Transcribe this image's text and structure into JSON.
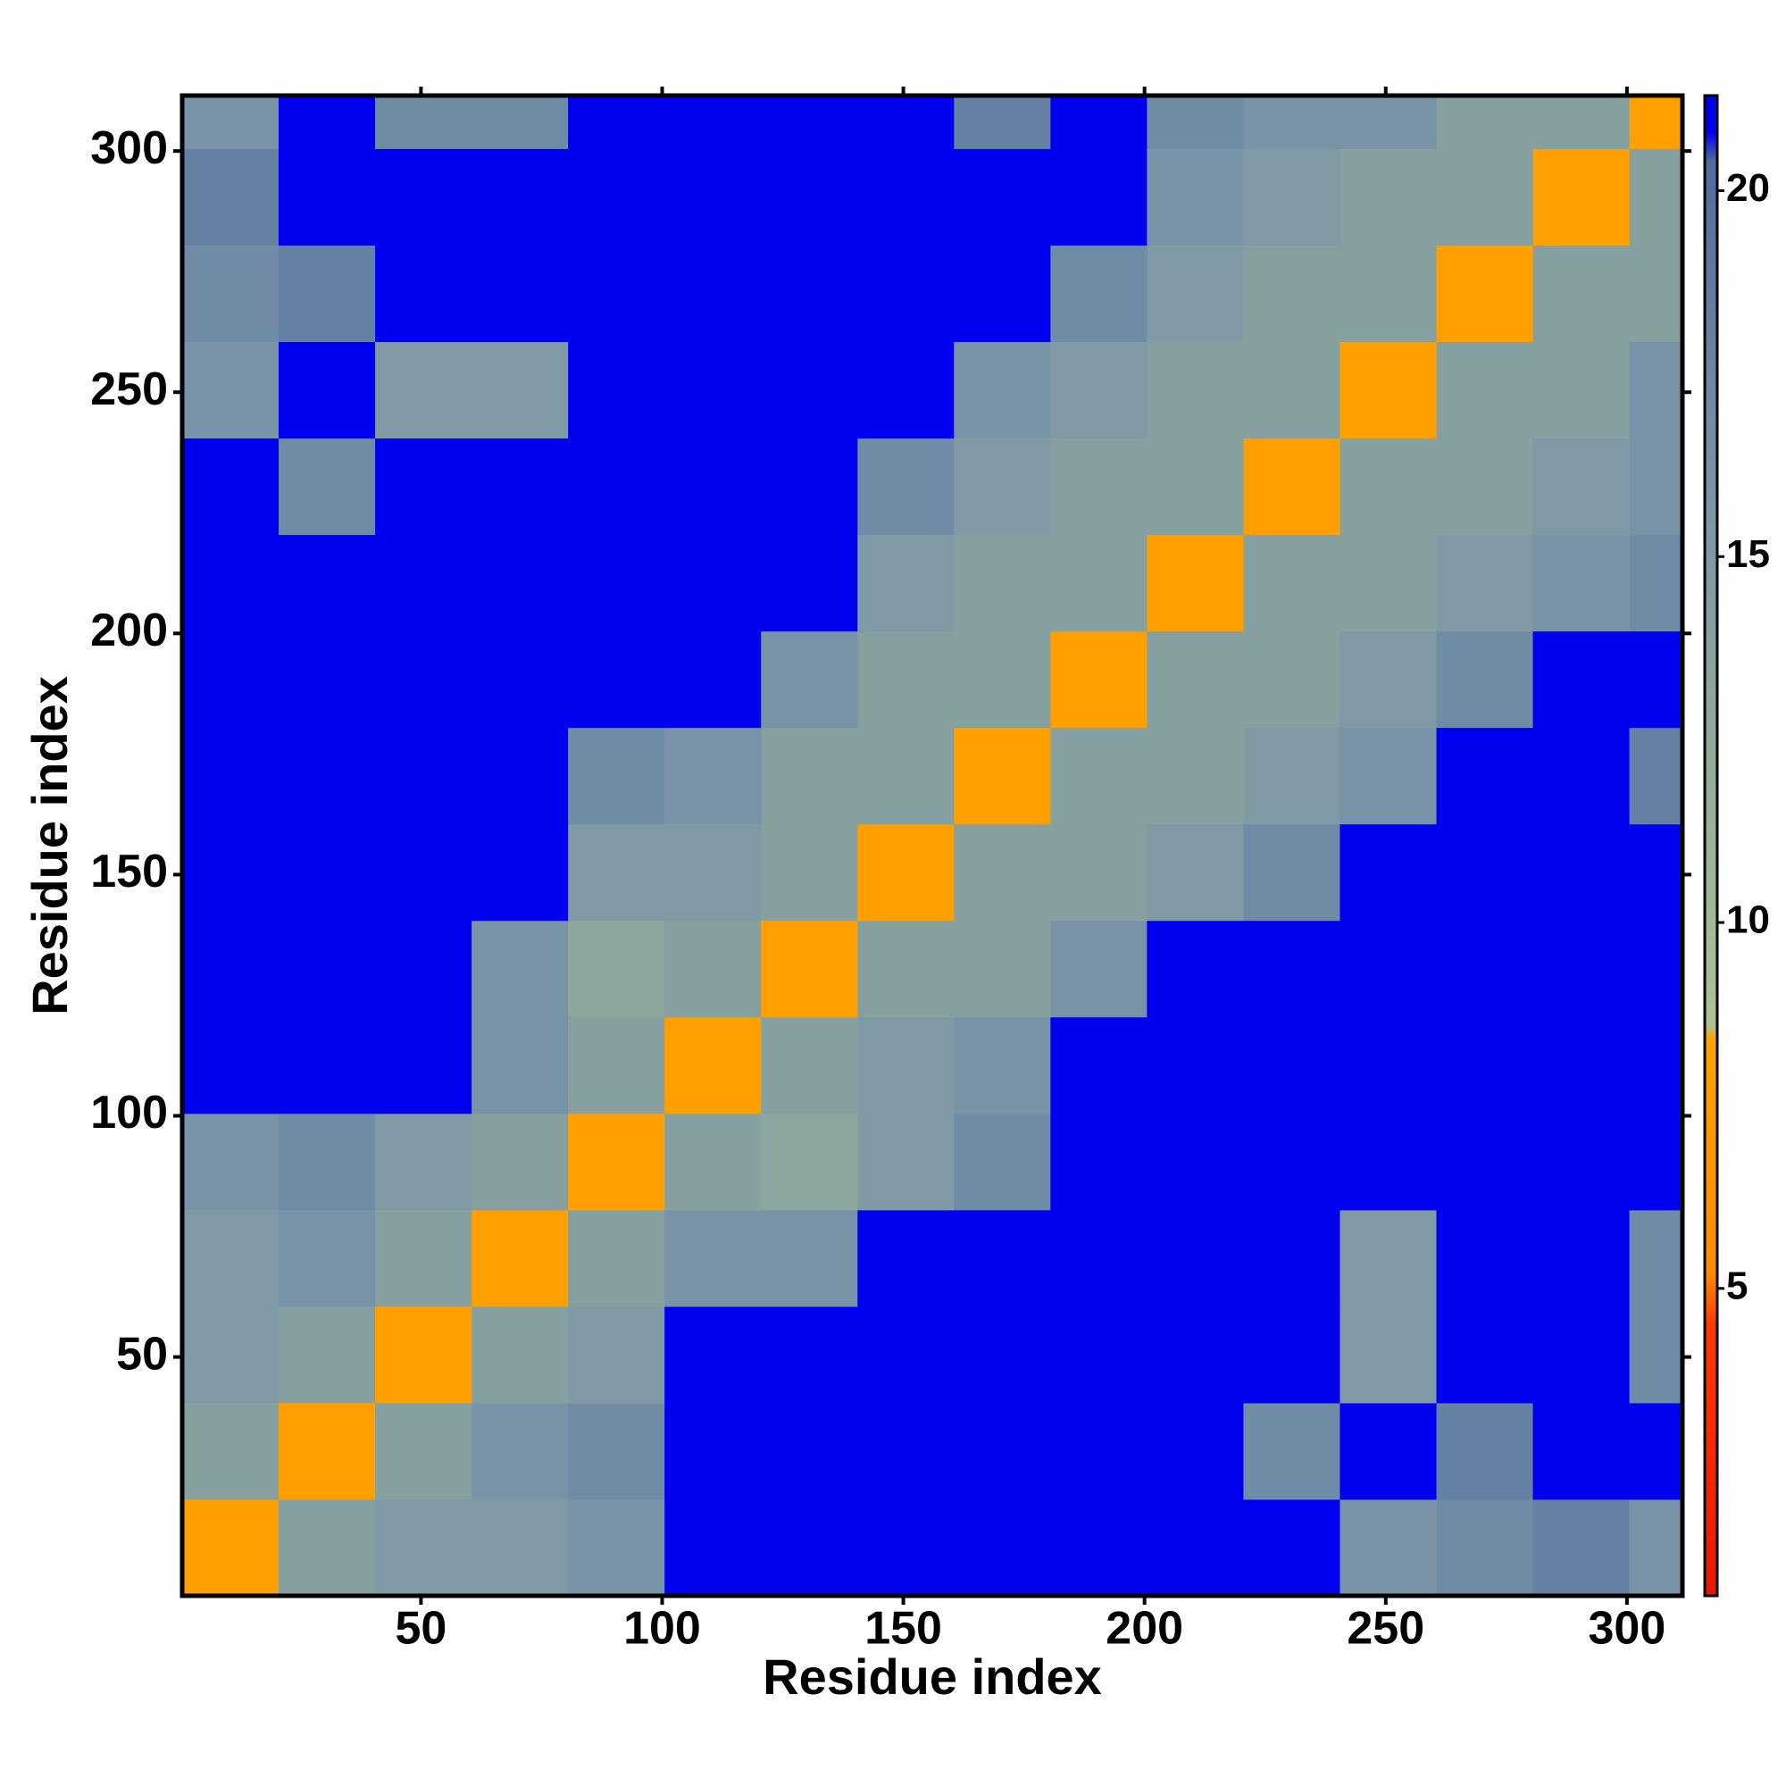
{
  "chart_data": {
    "type": "heatmap",
    "xlabel": "Residue index",
    "ylabel": "Residue index",
    "xbins": [
      0.5,
      20.5,
      40.5,
      60.5,
      80.5,
      100.5,
      120.5,
      140.5,
      160.5,
      180.5,
      200.5,
      220.5,
      240.5,
      260.5,
      280.5,
      300.5,
      311.5
    ],
    "ybins": [
      0.5,
      20.5,
      40.5,
      60.5,
      80.5,
      100.5,
      120.5,
      140.5,
      160.5,
      180.5,
      200.5,
      220.5,
      240.5,
      260.5,
      280.5,
      300.5,
      311.5
    ],
    "xlim": [
      0.5,
      311.5
    ],
    "ylim": [
      0.5,
      311.5
    ],
    "xticks": [
      50,
      100,
      150,
      200,
      250,
      300
    ],
    "yticks": [
      50,
      100,
      150,
      200,
      250,
      300
    ],
    "zlim": [
      0.8,
      21.3
    ],
    "zticks": [
      5,
      10,
      15,
      20
    ],
    "colorscale": [
      [
        0.8,
        "#e41a00"
      ],
      [
        4.5,
        "#ff3a00"
      ],
      [
        5.2,
        "#ff8c00"
      ],
      [
        8.4,
        "#ffa200"
      ],
      [
        8.6,
        "#a9c392"
      ],
      [
        12,
        "#93ad98"
      ],
      [
        16,
        "#7893a8"
      ],
      [
        20.4,
        "#4f6ea0"
      ],
      [
        20.8,
        "#0000f0"
      ],
      [
        21.3,
        "#0000f0"
      ]
    ],
    "z": [
      [
        8,
        14,
        15,
        15,
        16,
        21,
        21,
        21,
        21,
        21,
        21,
        21,
        16,
        17,
        18,
        16
      ],
      [
        14,
        8,
        14,
        16,
        17,
        21,
        21,
        21,
        21,
        21,
        21,
        17,
        21,
        18,
        21,
        21
      ],
      [
        15,
        14,
        8,
        14,
        15,
        21,
        21,
        21,
        21,
        21,
        21,
        21,
        15,
        21,
        21,
        17
      ],
      [
        15,
        16,
        14,
        8,
        14,
        16,
        16,
        21,
        21,
        21,
        21,
        21,
        15,
        21,
        21,
        17
      ],
      [
        16,
        17,
        15,
        14,
        8,
        14,
        13,
        15,
        17,
        21,
        21,
        21,
        21,
        21,
        21,
        21
      ],
      [
        21,
        21,
        21,
        16,
        14,
        8,
        14,
        15,
        16,
        21,
        21,
        21,
        21,
        21,
        21,
        21
      ],
      [
        21,
        21,
        21,
        16,
        13,
        14,
        8,
        14,
        14,
        16,
        21,
        21,
        21,
        21,
        21,
        21
      ],
      [
        21,
        21,
        21,
        21,
        15,
        15,
        14,
        8,
        14,
        14,
        15,
        17,
        21,
        21,
        21,
        21
      ],
      [
        21,
        21,
        21,
        21,
        17,
        16,
        14,
        14,
        8,
        14,
        14,
        15,
        16,
        21,
        21,
        18
      ],
      [
        21,
        21,
        21,
        21,
        21,
        21,
        16,
        14,
        14,
        8,
        14,
        14,
        15,
        17,
        21,
        21
      ],
      [
        21,
        21,
        21,
        21,
        21,
        21,
        21,
        15,
        14,
        14,
        8,
        14,
        14,
        15,
        16,
        17
      ],
      [
        21,
        17,
        21,
        21,
        21,
        21,
        21,
        17,
        15,
        14,
        14,
        8,
        14,
        14,
        15,
        16
      ],
      [
        16,
        21,
        15,
        15,
        21,
        21,
        21,
        21,
        16,
        15,
        14,
        14,
        8,
        14,
        14,
        16
      ],
      [
        17,
        18,
        21,
        21,
        21,
        21,
        21,
        21,
        21,
        17,
        15,
        14,
        14,
        8,
        14,
        14
      ],
      [
        18,
        21,
        21,
        21,
        21,
        21,
        21,
        21,
        21,
        21,
        16,
        15,
        14,
        14,
        8,
        14
      ],
      [
        16,
        21,
        17,
        17,
        21,
        21,
        21,
        21,
        18,
        21,
        17,
        16,
        16,
        14,
        14,
        8
      ]
    ]
  }
}
